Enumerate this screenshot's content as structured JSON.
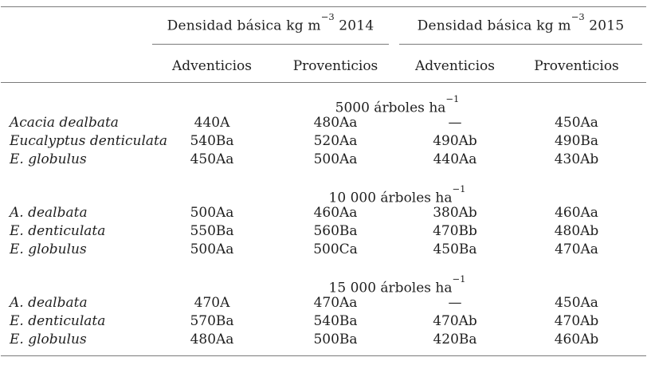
{
  "table": {
    "col_groups": [
      {
        "title_pre": "Densidad básica kg m",
        "title_sup": "−3",
        "title_post": " 2014",
        "columns": [
          "Adventicios",
          "Proventicios"
        ]
      },
      {
        "title_pre": "Densidad básica kg m",
        "title_sup": "−3",
        "title_post": " 2015",
        "columns": [
          "Adventicios",
          "Proventicios"
        ]
      }
    ],
    "sections": [
      {
        "header_pre": "5000 árboles ha",
        "header_sup": "−1",
        "rows": [
          {
            "species": "Acacia dealbata",
            "values": [
              "440A",
              "480Aa",
              "—",
              "450Aa"
            ]
          },
          {
            "species": "Eucalyptus denticulata",
            "values": [
              "540Ba",
              "520Aa",
              "490Ab",
              "490Ba"
            ]
          },
          {
            "species": "E. globulus",
            "values": [
              "450Aa",
              "500Aa",
              "440Aa",
              "430Ab"
            ]
          }
        ]
      },
      {
        "header_pre": "10 000 árboles ha",
        "header_sup": "−1",
        "rows": [
          {
            "species": "A. dealbata",
            "values": [
              "500Aa",
              "460Aa",
              "380Ab",
              "460Aa"
            ]
          },
          {
            "species": "E. denticulata",
            "values": [
              "550Ba",
              "560Ba",
              "470Bb",
              "480Ab"
            ]
          },
          {
            "species": "E. globulus",
            "values": [
              "500Aa",
              "500Ca",
              "450Ba",
              "470Aa"
            ]
          }
        ]
      },
      {
        "header_pre": "15 000 árboles ha",
        "header_sup": "−1",
        "rows": [
          {
            "species": "A. dealbata",
            "values": [
              "470A",
              "470Aa",
              "—",
              "450Aa"
            ]
          },
          {
            "species": "E. denticulata",
            "values": [
              "570Ba",
              "540Ba",
              "470Ab",
              "470Ab"
            ]
          },
          {
            "species": "E. globulus",
            "values": [
              "480Aa",
              "500Ba",
              "420Ba",
              "460Ab"
            ]
          }
        ]
      }
    ]
  },
  "colors": {
    "background": "#ffffff",
    "text": "#1f1f1f",
    "rule": "#7b7b7b"
  }
}
